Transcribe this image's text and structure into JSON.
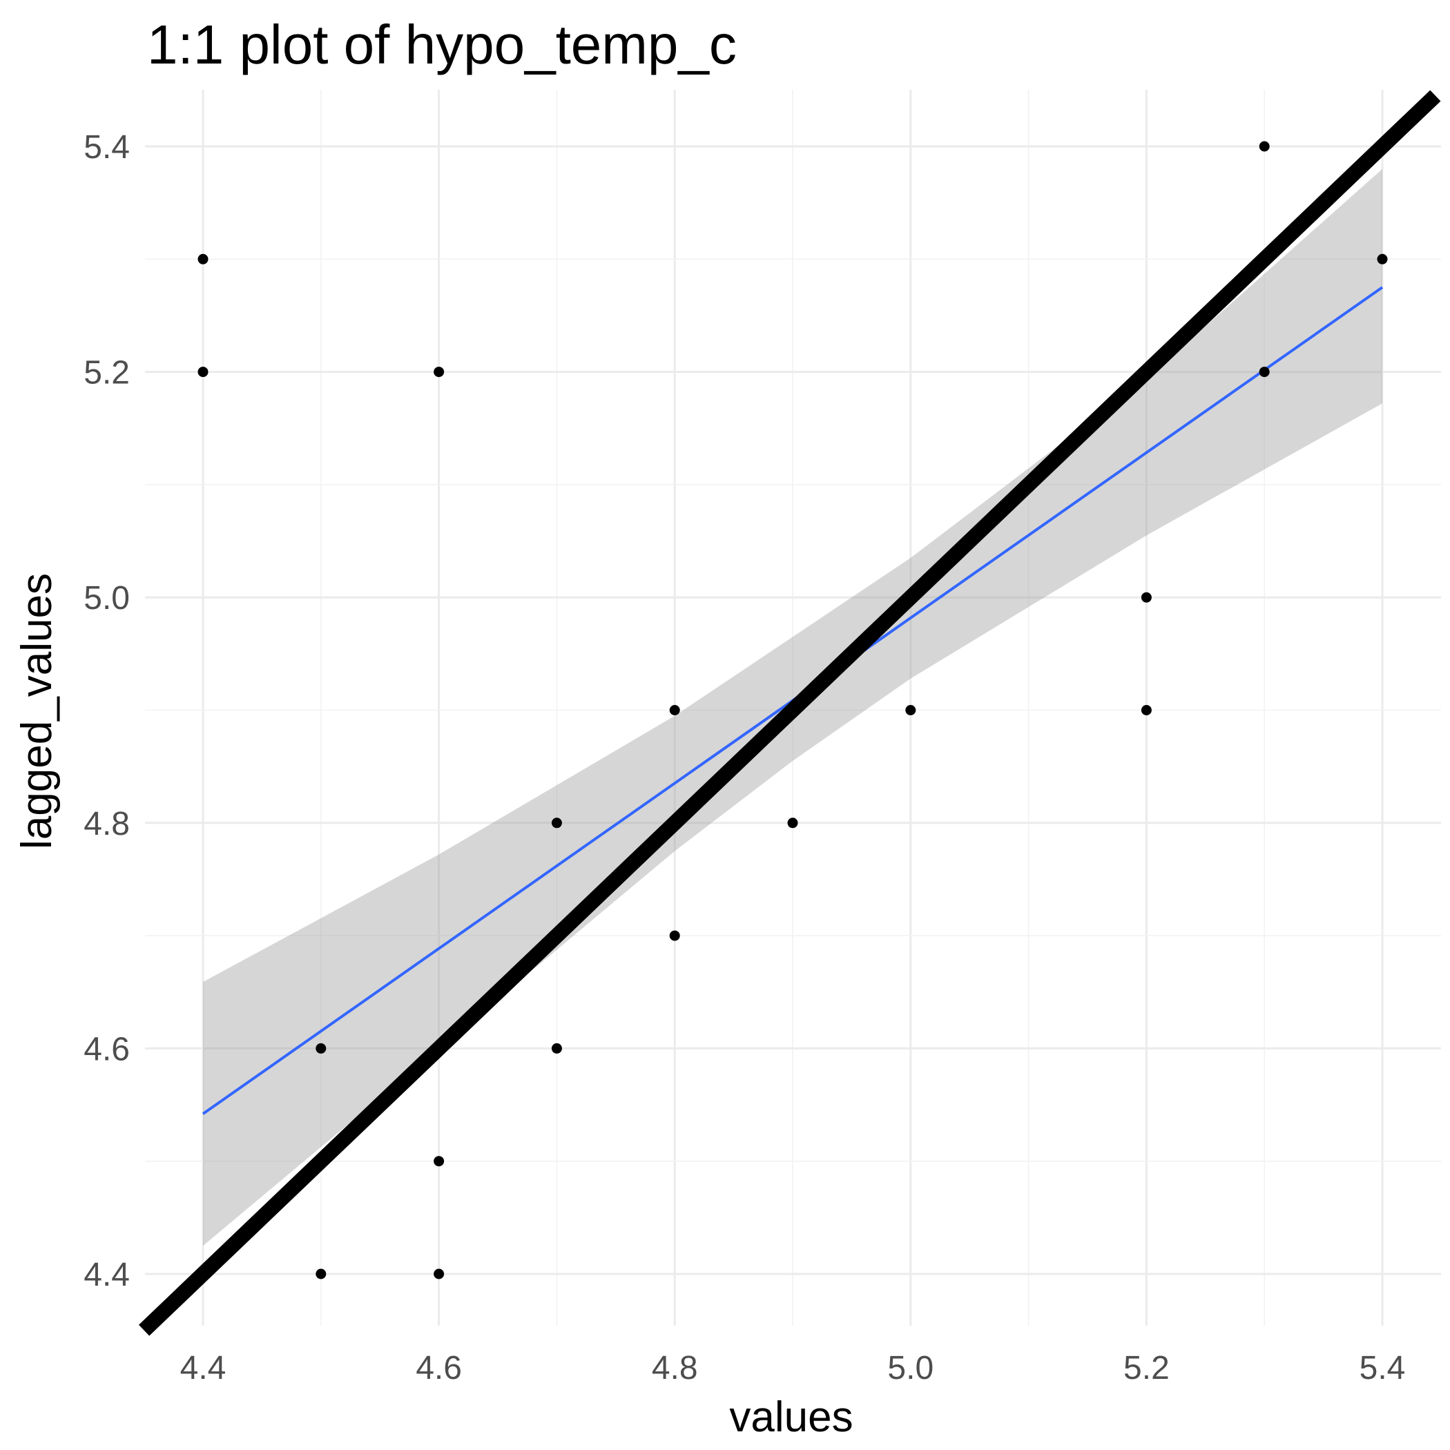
{
  "chart_data": {
    "type": "scatter",
    "title": "1:1 plot of hypo_temp_c",
    "xlabel": "values",
    "ylabel": "lagged_values",
    "xlim": [
      4.35,
      5.445
    ],
    "ylim": [
      4.35,
      5.445
    ],
    "x_ticks": [
      4.4,
      4.6,
      4.8,
      5.0,
      5.2,
      5.4
    ],
    "x_tick_labels": [
      "4.4",
      "4.6",
      "4.8",
      "5.0",
      "5.2",
      "5.4"
    ],
    "y_ticks": [
      4.4,
      4.6,
      4.8,
      5.0,
      5.2,
      5.4
    ],
    "y_tick_labels": [
      "4.4",
      "4.6",
      "4.8",
      "5.0",
      "5.2",
      "5.4"
    ],
    "grid": true,
    "points": [
      {
        "x": 4.4,
        "y": 5.3
      },
      {
        "x": 4.4,
        "y": 5.2
      },
      {
        "x": 4.5,
        "y": 4.6
      },
      {
        "x": 4.5,
        "y": 4.4
      },
      {
        "x": 4.6,
        "y": 5.2
      },
      {
        "x": 4.6,
        "y": 4.5
      },
      {
        "x": 4.6,
        "y": 4.4
      },
      {
        "x": 4.7,
        "y": 4.8
      },
      {
        "x": 4.7,
        "y": 4.6
      },
      {
        "x": 4.8,
        "y": 4.9
      },
      {
        "x": 4.8,
        "y": 4.7
      },
      {
        "x": 4.9,
        "y": 4.8
      },
      {
        "x": 5.0,
        "y": 4.9
      },
      {
        "x": 5.2,
        "y": 5.0
      },
      {
        "x": 5.2,
        "y": 4.9
      },
      {
        "x": 5.3,
        "y": 5.4
      },
      {
        "x": 5.3,
        "y": 5.2
      },
      {
        "x": 5.4,
        "y": 5.3
      }
    ],
    "identity_line": {
      "slope": 1,
      "intercept": 0,
      "color": "#000000"
    },
    "fit_line": {
      "method": "lm",
      "x": [
        4.4,
        5.4
      ],
      "y": [
        4.542,
        5.275
      ],
      "color": "#3366ff"
    },
    "confidence_band": {
      "x": [
        4.4,
        4.6,
        4.8,
        4.9,
        5.0,
        5.2,
        5.4
      ],
      "lower": [
        4.425,
        4.6,
        4.775,
        4.855,
        4.928,
        5.055,
        5.172
      ],
      "upper": [
        4.659,
        4.772,
        4.895,
        4.965,
        5.035,
        5.194,
        5.38
      ],
      "color": "#999999"
    },
    "point_color": "#000000"
  }
}
